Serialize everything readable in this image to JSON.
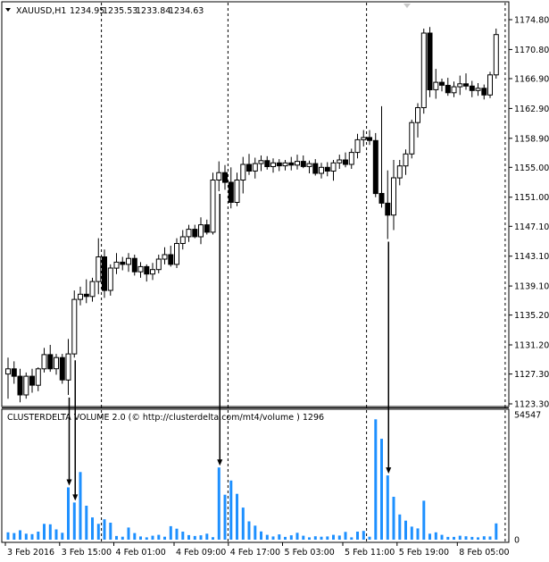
{
  "price_header": {
    "symbol": "XAUUSD,H1",
    "open": "1234.95",
    "high": "1235.53",
    "low": "1233.84",
    "close": "1234.63"
  },
  "volume_header": {
    "text": "CLUSTERDELTA VOLUME 2.0 (© http://clusterdelta.com/mt4/volume ) 1296"
  },
  "price_scale": {
    "min": 1123.3,
    "max": 1174.8,
    "ticks": [
      "1174.80",
      "1170.80",
      "1166.90",
      "1162.90",
      "1158.90",
      "1155.00",
      "1151.00",
      "1147.10",
      "1143.10",
      "1139.10",
      "1135.20",
      "1131.20",
      "1127.30",
      "1123.30"
    ]
  },
  "volume_scale": {
    "max": 54547,
    "ticks": [
      "54547",
      "0"
    ]
  },
  "time_axis": {
    "labels": [
      "3 Feb 2016",
      "3 Feb 15:00",
      "4 Feb 01:00",
      "4 Feb 09:00",
      "4 Feb 17:00",
      "5 Feb 03:00",
      "5 Feb 11:00",
      "5 Feb 19:00",
      "8 Feb 05:00"
    ],
    "separator_slots": [
      16,
      37,
      60,
      83
    ]
  },
  "colors": {
    "bull": "#ffffff",
    "bear": "#000000",
    "volume_bar": "#1e90ff",
    "arrow": "#000000",
    "separator": "#000000"
  },
  "chart_data": [
    {
      "type": "candlestick",
      "series": [
        {
          "name": "XAUUSD,H1",
          "ohlc": [
            [
              1127.3,
              1129.5,
              1124.0,
              1128.0
            ],
            [
              1128.0,
              1129.0,
              1126.0,
              1127.0
            ],
            [
              1127.0,
              1128.0,
              1123.5,
              1124.5
            ],
            [
              1124.5,
              1127.5,
              1124.0,
              1127.0
            ],
            [
              1127.0,
              1128.0,
              1124.8,
              1125.8
            ],
            [
              1125.8,
              1128.2,
              1125.0,
              1128.0
            ],
            [
              1128.0,
              1130.8,
              1127.5,
              1129.9
            ],
            [
              1129.9,
              1131.2,
              1127.6,
              1128.0
            ],
            [
              1128.0,
              1130.0,
              1127.2,
              1129.5
            ],
            [
              1129.5,
              1130.0,
              1126.0,
              1126.5
            ],
            [
              1126.5,
              1132.0,
              1124.5,
              1130.0
            ],
            [
              1130.0,
              1138.5,
              1129.5,
              1137.3
            ],
            [
              1137.3,
              1139.0,
              1136.5,
              1138.0
            ],
            [
              1138.0,
              1140.0,
              1136.8,
              1137.7
            ],
            [
              1137.7,
              1140.2,
              1137.0,
              1139.7
            ],
            [
              1139.7,
              1145.5,
              1138.0,
              1143.0
            ],
            [
              1143.0,
              1144.0,
              1137.5,
              1138.5
            ],
            [
              1138.5,
              1142.0,
              1137.8,
              1141.5
            ],
            [
              1141.5,
              1143.5,
              1140.7,
              1142.3
            ],
            [
              1142.3,
              1143.0,
              1141.2,
              1142.0
            ],
            [
              1142.0,
              1143.5,
              1141.0,
              1142.8
            ],
            [
              1142.8,
              1143.3,
              1140.5,
              1141.0
            ],
            [
              1141.0,
              1142.3,
              1140.2,
              1141.7
            ],
            [
              1141.7,
              1142.0,
              1139.7,
              1140.7
            ],
            [
              1140.7,
              1142.2,
              1139.9,
              1141.3
            ],
            [
              1141.3,
              1143.3,
              1140.8,
              1142.7
            ],
            [
              1142.7,
              1144.3,
              1142.0,
              1143.3
            ],
            [
              1143.3,
              1144.5,
              1141.7,
              1142.0
            ],
            [
              1142.0,
              1145.5,
              1141.5,
              1144.8
            ],
            [
              1144.8,
              1146.6,
              1144.0,
              1145.7
            ],
            [
              1145.7,
              1147.3,
              1145.0,
              1146.7
            ],
            [
              1146.7,
              1147.3,
              1145.5,
              1145.7
            ],
            [
              1145.7,
              1148.3,
              1144.7,
              1147.3
            ],
            [
              1147.3,
              1148.0,
              1146.0,
              1146.3
            ],
            [
              1146.3,
              1154.3,
              1146.0,
              1153.3
            ],
            [
              1153.3,
              1155.8,
              1151.8,
              1154.3
            ],
            [
              1154.3,
              1155.3,
              1152.0,
              1153.0
            ],
            [
              1153.0,
              1155.0,
              1149.5,
              1150.3
            ],
            [
              1150.3,
              1154.3,
              1149.8,
              1153.3
            ],
            [
              1153.3,
              1156.4,
              1151.5,
              1155.4
            ],
            [
              1155.4,
              1156.8,
              1154.0,
              1154.5
            ],
            [
              1154.5,
              1156.3,
              1153.5,
              1155.5
            ],
            [
              1155.5,
              1156.6,
              1154.5,
              1155.9
            ],
            [
              1155.9,
              1156.5,
              1154.7,
              1155.1
            ],
            [
              1155.1,
              1156.2,
              1154.3,
              1155.6
            ],
            [
              1155.6,
              1156.1,
              1154.5,
              1155.2
            ],
            [
              1155.2,
              1156.0,
              1154.6,
              1155.6
            ],
            [
              1155.6,
              1156.4,
              1154.6,
              1155.3
            ],
            [
              1155.3,
              1156.7,
              1154.7,
              1155.8
            ],
            [
              1155.8,
              1156.6,
              1154.9,
              1155.1
            ],
            [
              1155.1,
              1155.9,
              1154.2,
              1155.5
            ],
            [
              1155.5,
              1156.1,
              1153.9,
              1154.2
            ],
            [
              1154.2,
              1155.6,
              1153.5,
              1155.0
            ],
            [
              1155.0,
              1155.7,
              1153.8,
              1154.5
            ],
            [
              1154.5,
              1156.0,
              1153.2,
              1155.6
            ],
            [
              1155.6,
              1156.7,
              1154.8,
              1156.0
            ],
            [
              1156.0,
              1157.0,
              1155.0,
              1155.4
            ],
            [
              1155.4,
              1157.5,
              1154.8,
              1157.0
            ],
            [
              1157.0,
              1159.5,
              1156.2,
              1158.7
            ],
            [
              1158.7,
              1160.0,
              1157.8,
              1159.0
            ],
            [
              1159.0,
              1160.0,
              1158.0,
              1158.6
            ],
            [
              1158.6,
              1159.6,
              1151.0,
              1151.5
            ],
            [
              1151.5,
              1163.2,
              1149.6,
              1150.2
            ],
            [
              1150.2,
              1154.6,
              1145.4,
              1148.6
            ],
            [
              1148.6,
              1156.0,
              1146.6,
              1153.6
            ],
            [
              1153.6,
              1156.0,
              1152.6,
              1155.2
            ],
            [
              1155.2,
              1157.4,
              1154.0,
              1156.8
            ],
            [
              1156.8,
              1161.4,
              1156.2,
              1161.0
            ],
            [
              1161.0,
              1163.6,
              1159.0,
              1163.0
            ],
            [
              1163.0,
              1173.6,
              1162.2,
              1173.0
            ],
            [
              1173.0,
              1173.8,
              1164.4,
              1165.4
            ],
            [
              1165.4,
              1168.2,
              1164.2,
              1166.4
            ],
            [
              1166.4,
              1166.9,
              1165.2,
              1166.0
            ],
            [
              1166.0,
              1167.0,
              1164.6,
              1165.0
            ],
            [
              1165.0,
              1166.5,
              1164.4,
              1165.8
            ],
            [
              1165.8,
              1167.3,
              1164.7,
              1166.2
            ],
            [
              1166.2,
              1167.6,
              1165.4,
              1165.9
            ],
            [
              1165.9,
              1166.6,
              1164.4,
              1165.3
            ],
            [
              1165.3,
              1166.3,
              1164.6,
              1165.6
            ],
            [
              1165.6,
              1166.1,
              1164.1,
              1164.7
            ],
            [
              1164.7,
              1167.8,
              1164.3,
              1167.4
            ],
            [
              1167.4,
              1173.6,
              1166.9,
              1172.8
            ]
          ]
        }
      ]
    },
    {
      "type": "bar",
      "series": [
        {
          "name": "CLUSTERDELTA VOLUME 2.0",
          "values": [
            3200,
            2900,
            4100,
            2600,
            2400,
            3500,
            6900,
            6700,
            4500,
            3000,
            22800,
            16200,
            29500,
            14800,
            9700,
            6900,
            8900,
            7400,
            1600,
            1300,
            5300,
            2900,
            1400,
            1000,
            1700,
            2100,
            1300,
            5900,
            4800,
            3500,
            2000,
            1600,
            1900,
            2600,
            1100,
            31500,
            19600,
            25800,
            20000,
            14000,
            8000,
            6100,
            3600,
            2100,
            1400,
            2300,
            1200,
            1900,
            3000,
            1700,
            1000,
            1500,
            1300,
            1400,
            2100,
            1800,
            3400,
            1000,
            3500,
            3800,
            1300,
            52500,
            44000,
            28000,
            18700,
            11000,
            8300,
            5700,
            4900,
            17000,
            2600,
            3200,
            2100,
            1200,
            1200,
            1700,
            1500,
            1200,
            1000,
            1500,
            1400,
            7100
          ]
        }
      ]
    }
  ]
}
